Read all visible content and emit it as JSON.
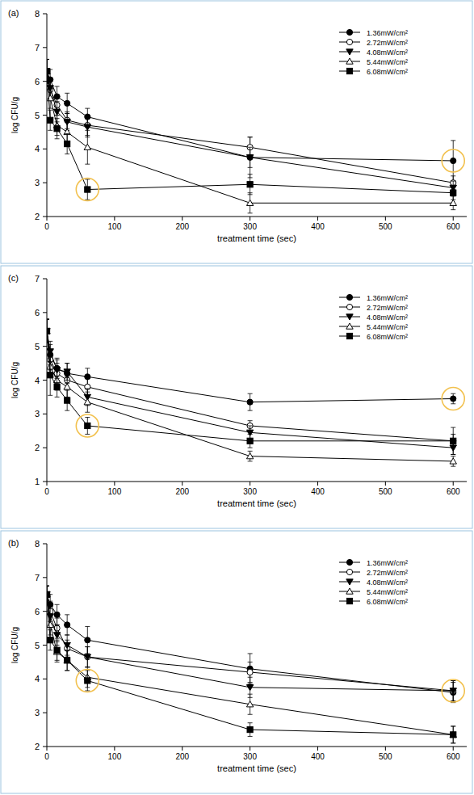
{
  "chart_data": [
    {
      "type": "line",
      "title": "(a)",
      "x_label": "treatment time (sec)",
      "y_label": "log CFU/g",
      "x": [
        0,
        5,
        15,
        30,
        60,
        300,
        600
      ],
      "xlim": [
        0,
        620
      ],
      "xticks": [
        0,
        100,
        200,
        300,
        400,
        500,
        600
      ],
      "ylim": [
        2,
        8
      ],
      "yticks": [
        2,
        3,
        4,
        5,
        6,
        7,
        8
      ],
      "legend": "top-right",
      "series": [
        {
          "name": "1.36mW/cm²",
          "color": "#000000",
          "marker": "circle",
          "values": [
            6.3,
            6.05,
            5.55,
            5.35,
            4.95,
            3.75,
            3.65
          ],
          "errors": [
            0.35,
            0.3,
            0.3,
            0.3,
            0.25,
            0.6,
            0.6
          ]
        },
        {
          "name": "2.72mW/cm²",
          "color": "#000000",
          "marker": "circle-open",
          "values": [
            6.3,
            5.75,
            5.3,
            4.85,
            4.7,
            4.05,
            3.0
          ],
          "errors": [
            0.35,
            0.3,
            0.3,
            0.25,
            0.3,
            0.3,
            0.2
          ]
        },
        {
          "name": "4.08mW/cm²",
          "color": "#000000",
          "marker": "triangle-down",
          "values": [
            6.3,
            5.8,
            5.1,
            4.8,
            4.65,
            3.75,
            2.85
          ],
          "errors": [
            0.35,
            0.3,
            0.3,
            0.25,
            0.3,
            0.3,
            0.2
          ]
        },
        {
          "name": "5.44mW/cm²",
          "color": "#000000",
          "marker": "triangle-up-open",
          "values": [
            6.3,
            5.5,
            4.7,
            4.5,
            4.05,
            2.4,
            2.4
          ],
          "errors": [
            0.35,
            0.3,
            0.3,
            0.3,
            0.5,
            0.3,
            0.2
          ]
        },
        {
          "name": "6.08mW/cm²",
          "color": "#000000",
          "marker": "square",
          "values": [
            6.3,
            4.85,
            4.6,
            4.15,
            2.8,
            2.95,
            2.7
          ],
          "errors": [
            0.35,
            0.3,
            0.3,
            0.3,
            0.3,
            0.3,
            0.2
          ]
        }
      ]
    },
    {
      "type": "line",
      "title": "(c)",
      "x_label": "treatment time (sec)",
      "y_label": "log CFU/g",
      "x": [
        0,
        5,
        15,
        30,
        60,
        300,
        600
      ],
      "xlim": [
        0,
        620
      ],
      "xticks": [
        0,
        100,
        200,
        300,
        400,
        500,
        600
      ],
      "ylim": [
        1,
        7
      ],
      "yticks": [
        1,
        2,
        3,
        4,
        5,
        6,
        7
      ],
      "legend": "top-right",
      "series": [
        {
          "name": "1.36mW/cm²",
          "color": "#000000",
          "marker": "circle",
          "values": [
            5.45,
            4.75,
            4.35,
            4.2,
            4.1,
            3.35,
            3.45
          ],
          "errors": [
            0.35,
            0.3,
            0.3,
            0.3,
            0.25,
            0.25,
            0.15
          ]
        },
        {
          "name": "2.72mW/cm²",
          "color": "#000000",
          "marker": "circle-open",
          "values": [
            5.45,
            4.6,
            4.2,
            4.0,
            3.8,
            2.65,
            2.2
          ],
          "errors": [
            0.35,
            0.3,
            0.3,
            0.25,
            0.25,
            0.15,
            0.2
          ]
        },
        {
          "name": "4.08mW/cm²",
          "color": "#000000",
          "marker": "triangle-down",
          "values": [
            5.45,
            4.85,
            4.3,
            4.25,
            3.5,
            2.45,
            2.0
          ],
          "errors": [
            0.35,
            0.3,
            0.3,
            0.25,
            0.25,
            0.2,
            0.2
          ]
        },
        {
          "name": "5.44mW/cm²",
          "color": "#000000",
          "marker": "triangle-up-open",
          "values": [
            5.45,
            4.4,
            4.0,
            3.8,
            3.35,
            1.75,
            1.6
          ],
          "errors": [
            0.35,
            0.3,
            0.3,
            0.3,
            0.3,
            0.15,
            0.15
          ]
        },
        {
          "name": "6.08mW/cm²",
          "color": "#000000",
          "marker": "square",
          "values": [
            5.45,
            4.15,
            3.8,
            3.4,
            2.65,
            2.2,
            2.2
          ],
          "errors": [
            0.35,
            0.6,
            0.3,
            0.3,
            0.25,
            0.2,
            0.4
          ]
        }
      ]
    },
    {
      "type": "line",
      "title": "(b)",
      "x_label": "treatment time (sec)",
      "y_label": "log CFU/g",
      "x": [
        0,
        5,
        15,
        30,
        60,
        300,
        600
      ],
      "xlim": [
        0,
        620
      ],
      "xticks": [
        0,
        100,
        200,
        300,
        400,
        500,
        600
      ],
      "ylim": [
        2,
        8
      ],
      "yticks": [
        2,
        3,
        4,
        5,
        6,
        7,
        8
      ],
      "legend": "top-right",
      "series": [
        {
          "name": "1.36mW/cm²",
          "color": "#000000",
          "marker": "circle",
          "values": [
            6.5,
            6.2,
            5.9,
            5.6,
            5.15,
            4.3,
            3.6
          ],
          "errors": [
            0.25,
            0.3,
            0.3,
            0.3,
            0.4,
            0.45,
            0.3
          ]
        },
        {
          "name": "2.72mW/cm²",
          "color": "#000000",
          "marker": "circle-open",
          "values": [
            6.5,
            6.0,
            5.5,
            4.9,
            4.65,
            4.2,
            3.65
          ],
          "errors": [
            0.25,
            0.3,
            0.3,
            0.25,
            0.3,
            0.3,
            0.3
          ]
        },
        {
          "name": "4.08mW/cm²",
          "color": "#000000",
          "marker": "triangle-down",
          "values": [
            6.5,
            5.85,
            5.3,
            5.0,
            4.65,
            3.75,
            3.65
          ],
          "errors": [
            0.25,
            0.3,
            0.3,
            0.3,
            0.3,
            0.3,
            0.3
          ]
        },
        {
          "name": "5.44mW/cm²",
          "color": "#000000",
          "marker": "triangle-up-open",
          "values": [
            6.5,
            5.6,
            4.8,
            4.55,
            4.05,
            3.25,
            2.35
          ],
          "errors": [
            0.25,
            0.3,
            0.3,
            0.3,
            0.3,
            0.3,
            0.25
          ]
        },
        {
          "name": "6.08mW/cm²",
          "color": "#000000",
          "marker": "square",
          "values": [
            6.5,
            5.15,
            4.85,
            4.55,
            3.95,
            2.5,
            2.35
          ],
          "errors": [
            0.25,
            0.3,
            0.3,
            0.3,
            0.3,
            0.2,
            0.25
          ]
        }
      ]
    }
  ]
}
